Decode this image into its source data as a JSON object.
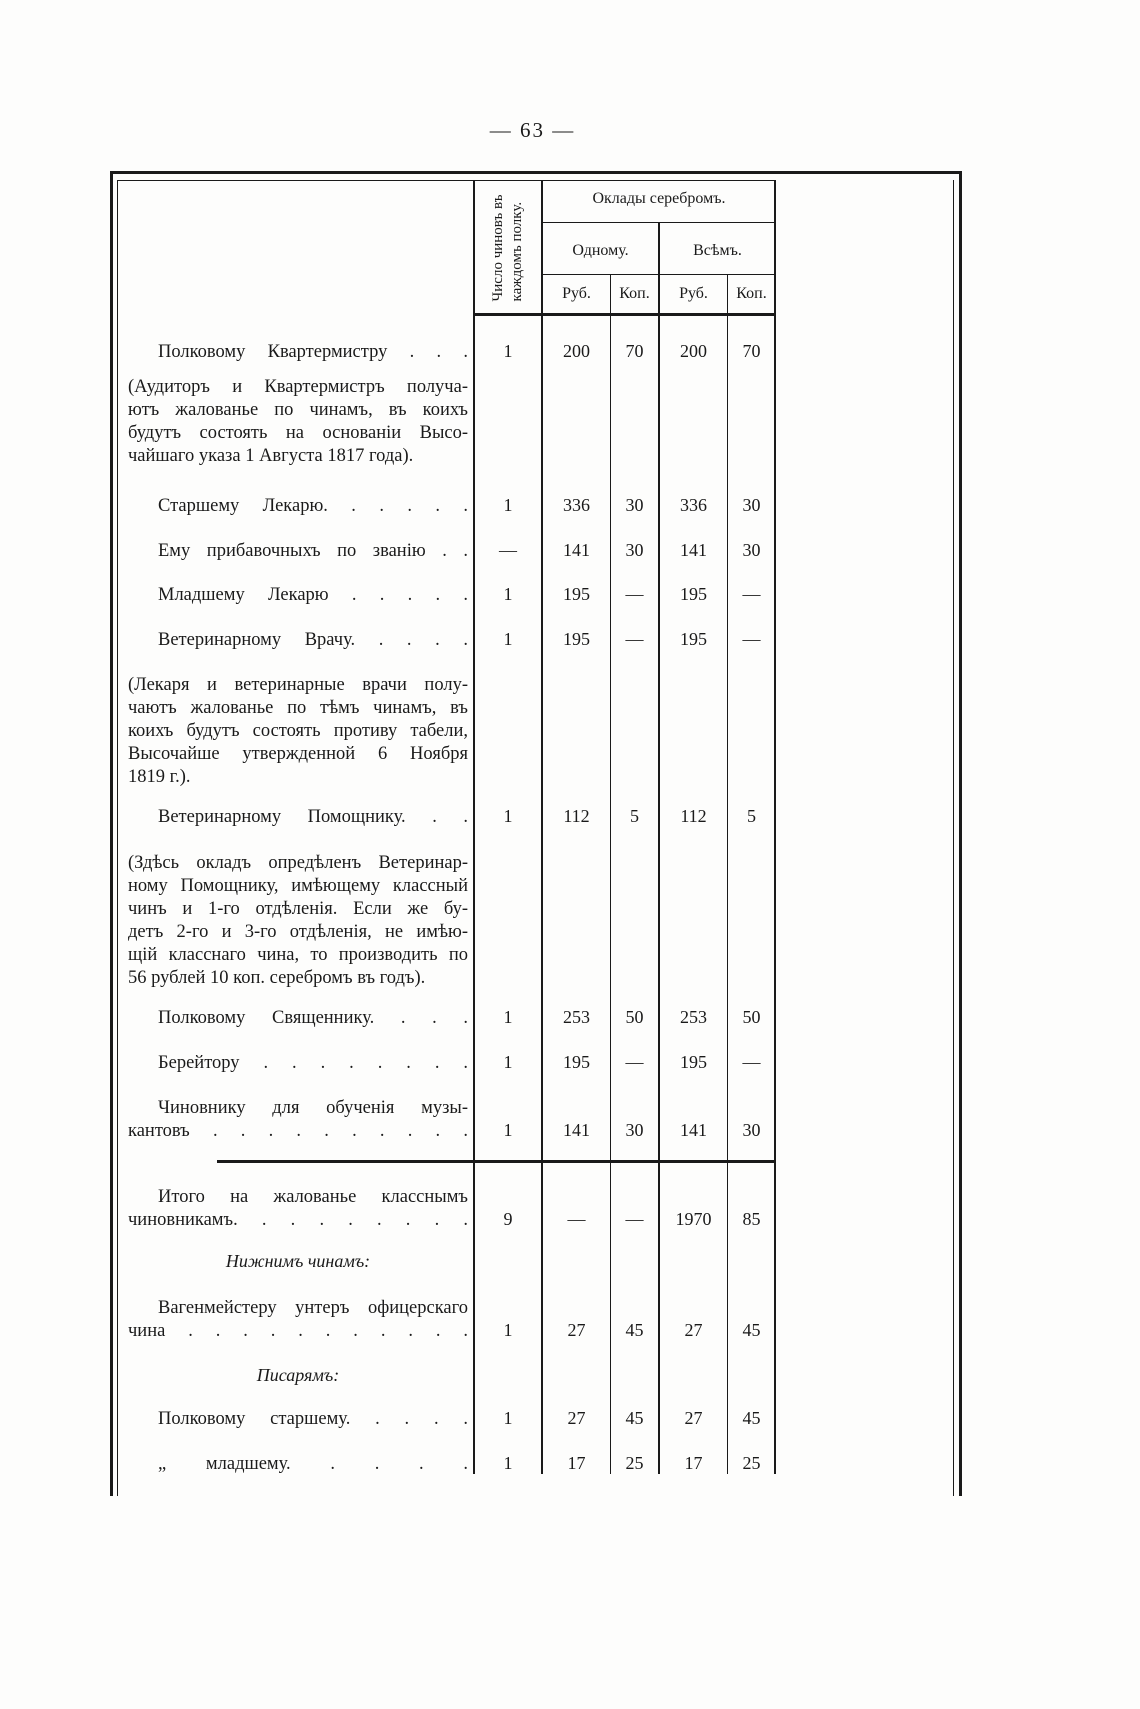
{
  "page_number": "— 63 —",
  "header": {
    "count_col": [
      "Число чиновъ въ",
      "каждомъ полку."
    ],
    "salary_group": "Оклады серебромъ.",
    "one": "Одному.",
    "all": "Всѣмъ.",
    "rub": "Руб.",
    "kop": "Коп."
  },
  "rows": [
    {
      "label": [
        "Полковому Квартермистру . . ."
      ],
      "count": "1",
      "one_rub": "200",
      "one_kop": "70",
      "all_rub": "200",
      "all_kop": "70"
    },
    {
      "note": [
        "(Аудиторъ и Квартермистръ получа-",
        "ютъ жалованье по чинамъ, въ коихъ",
        "будутъ состоять на основанiи Высо-",
        "чайшаго указа 1 Августа 1817 года)."
      ]
    },
    {
      "label": [
        "Старшему Лекарю. . . . . ."
      ],
      "count": "1",
      "one_rub": "336",
      "one_kop": "30",
      "all_rub": "336",
      "all_kop": "30"
    },
    {
      "label": [
        "Ему прибавочныхъ по званiю . ."
      ],
      "count": "—",
      "one_rub": "141",
      "one_kop": "30",
      "all_rub": "141",
      "all_kop": "30"
    },
    {
      "label": [
        "Младшему Лекарю . . . . ."
      ],
      "count": "1",
      "one_rub": "195",
      "one_kop": "—",
      "all_rub": "195",
      "all_kop": "—"
    },
    {
      "label": [
        "Ветеринарному Врачу. . . . ."
      ],
      "count": "1",
      "one_rub": "195",
      "one_kop": "—",
      "all_rub": "195",
      "all_kop": "—"
    },
    {
      "note": [
        "(Лекаря и ветеринарные врачи полу-",
        "чаютъ жалованье по тѣмъ чинамъ, въ",
        "коихъ будутъ состоять противу табели,",
        "Высочайше утвержденной 6 Ноября",
        "1819 г.)."
      ]
    },
    {
      "label": [
        "Ветеринарному Помощнику. . ."
      ],
      "count": "1",
      "one_rub": "112",
      "one_kop": "5",
      "all_rub": "112",
      "all_kop": "5"
    },
    {
      "note": [
        "(Здѣсь окладъ опредѣленъ Ветеринар-",
        "ному Помощнику, имѣющему классный",
        "чинъ и 1-го отдѣленiя. Если же бу-",
        "детъ 2-го и 3-го отдѣленiя, не имѣю-",
        "щiй класснаго чина, то производить по",
        "56 рублей 10 коп. серебромъ въ годъ)."
      ]
    },
    {
      "label": [
        "Полковому Священнику. . . ."
      ],
      "count": "1",
      "one_rub": "253",
      "one_kop": "50",
      "all_rub": "253",
      "all_kop": "50"
    },
    {
      "label": [
        "Берейтору . . . . . . . ."
      ],
      "count": "1",
      "one_rub": "195",
      "one_kop": "—",
      "all_rub": "195",
      "all_kop": "—"
    },
    {
      "label": [
        "Чиновнику для обученiя музы-",
        "кантовъ . . . . . . . . . ."
      ],
      "count": "1",
      "one_rub": "141",
      "one_kop": "30",
      "all_rub": "141",
      "all_kop": "30"
    },
    {
      "label": [
        "Итого на жалованье класснымъ",
        "чиновникамъ. . . . . . . . ."
      ],
      "count": "9",
      "one_rub": "—",
      "one_kop": "—",
      "all_rub": "1970",
      "all_kop": "85"
    },
    {
      "subheading": "Нижнимъ чинамъ:"
    },
    {
      "label": [
        "Вагенмейстеру унтеръ офицерскаго",
        "чина . . . . . . . . . . ."
      ],
      "count": "1",
      "one_rub": "27",
      "one_kop": "45",
      "all_rub": "27",
      "all_kop": "45"
    },
    {
      "subheading": "Писарямъ:"
    },
    {
      "label": [
        "Полковому старшему. . . . ."
      ],
      "count": "1",
      "one_rub": "27",
      "one_kop": "45",
      "all_rub": "27",
      "all_kop": "45"
    },
    {
      "label": [
        "„ младшему. . . . ."
      ],
      "count": "1",
      "one_rub": "17",
      "one_kop": "25",
      "all_rub": "17",
      "all_kop": "25"
    }
  ]
}
